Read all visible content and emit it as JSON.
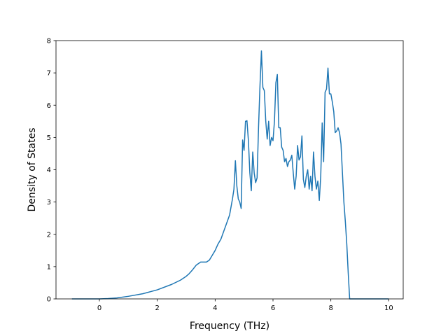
{
  "chart_data": {
    "type": "line",
    "title": "",
    "xlabel": "Frequency (THz)",
    "ylabel": "Density of States",
    "xlim": [
      -1.5,
      10.5
    ],
    "ylim": [
      0,
      8
    ],
    "xticks": [
      0,
      2,
      4,
      6,
      8,
      10
    ],
    "yticks": [
      0,
      1,
      2,
      3,
      4,
      5,
      6,
      7,
      8
    ],
    "xtick_labels": [
      "0",
      "2",
      "4",
      "6",
      "8",
      "10"
    ],
    "ytick_labels": [
      "0",
      "1",
      "2",
      "3",
      "4",
      "5",
      "6",
      "7",
      "8"
    ],
    "grid": false,
    "legend": "none",
    "series": [
      {
        "color": "#1f77b4",
        "x": [
          -0.95,
          0.0,
          0.3,
          0.6,
          1.0,
          1.5,
          2.0,
          2.5,
          2.8,
          3.0,
          3.1,
          3.2,
          3.35,
          3.5,
          3.6,
          3.7,
          3.8,
          3.9,
          4.0,
          4.1,
          4.2,
          4.3,
          4.4,
          4.5,
          4.55,
          4.6,
          4.65,
          4.7,
          4.75,
          4.8,
          4.85,
          4.9,
          4.95,
          5.0,
          5.05,
          5.1,
          5.15,
          5.2,
          5.25,
          5.3,
          5.35,
          5.4,
          5.45,
          5.5,
          5.55,
          5.6,
          5.65,
          5.7,
          5.75,
          5.8,
          5.85,
          5.9,
          5.95,
          6.0,
          6.05,
          6.1,
          6.15,
          6.2,
          6.25,
          6.3,
          6.35,
          6.4,
          6.45,
          6.5,
          6.55,
          6.6,
          6.65,
          6.7,
          6.75,
          6.8,
          6.85,
          6.9,
          6.95,
          7.0,
          7.05,
          7.1,
          7.15,
          7.2,
          7.25,
          7.3,
          7.35,
          7.4,
          7.45,
          7.5,
          7.55,
          7.6,
          7.65,
          7.7,
          7.75,
          7.8,
          7.85,
          7.9,
          7.95,
          8.0,
          8.05,
          8.1,
          8.15,
          8.2,
          8.25,
          8.3,
          8.35,
          8.4,
          8.45,
          8.5,
          8.55,
          8.6,
          8.65,
          8.7,
          8.75,
          8.8,
          8.85,
          8.9,
          8.95,
          9.0,
          9.05,
          9.1,
          9.2,
          9.5,
          10.0
        ],
        "y": [
          0,
          0,
          0.01,
          0.03,
          0.08,
          0.16,
          0.28,
          0.45,
          0.58,
          0.7,
          0.78,
          0.88,
          1.05,
          1.14,
          1.14,
          1.14,
          1.2,
          1.35,
          1.5,
          1.7,
          1.85,
          2.1,
          2.35,
          2.6,
          2.85,
          3.1,
          3.4,
          4.28,
          3.5,
          3.1,
          3.0,
          2.8,
          4.92,
          4.6,
          5.5,
          5.52,
          4.9,
          3.9,
          3.35,
          4.55,
          3.9,
          3.6,
          3.75,
          5.3,
          6.6,
          7.68,
          6.55,
          6.45,
          5.5,
          4.95,
          5.5,
          4.75,
          5.0,
          4.9,
          5.5,
          6.7,
          6.95,
          5.3,
          5.3,
          4.7,
          4.6,
          4.25,
          4.35,
          4.1,
          4.25,
          4.3,
          4.45,
          3.9,
          3.4,
          3.8,
          4.75,
          4.3,
          4.4,
          5.05,
          3.7,
          3.45,
          3.8,
          4.0,
          3.4,
          3.8,
          3.35,
          4.55,
          3.8,
          3.4,
          3.65,
          3.05,
          3.8,
          5.45,
          4.25,
          6.4,
          6.5,
          7.15,
          6.35,
          6.35,
          6.1,
          5.8,
          5.15,
          5.2,
          5.3,
          5.15,
          4.8,
          3.9,
          3.0,
          2.4,
          1.7,
          0.8,
          0.0,
          0.0,
          0.0,
          0.0,
          0.0,
          0.0,
          0.0,
          0.0,
          0.0,
          0.0,
          0.0,
          0.0,
          0.0
        ]
      }
    ]
  }
}
